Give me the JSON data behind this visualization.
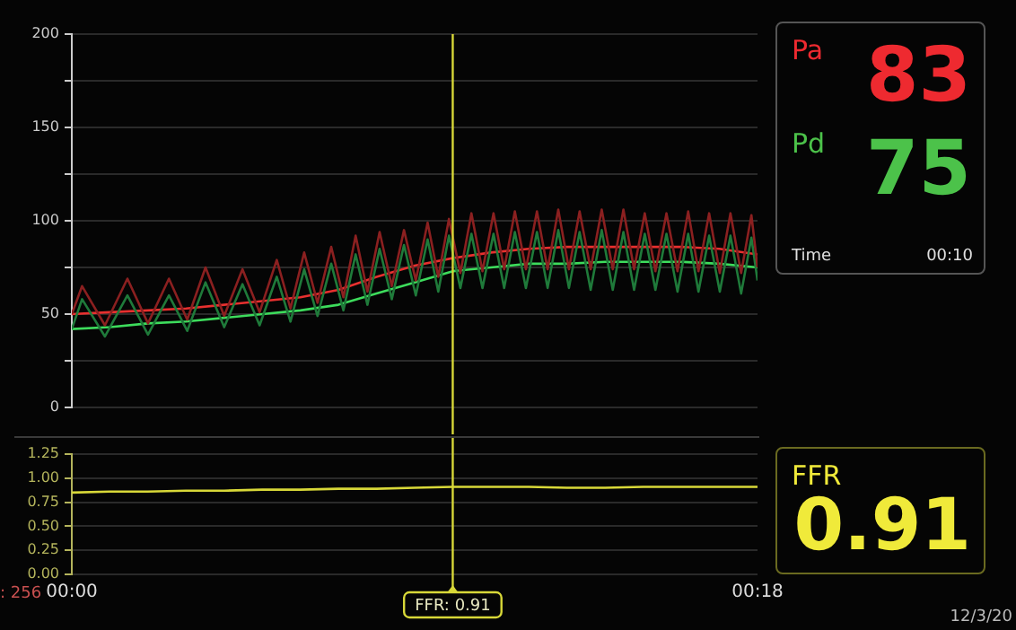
{
  "chart_data": [
    {
      "type": "line",
      "ylim": [
        0,
        200
      ],
      "yticks": [
        0,
        {
          "value": 25,
          "label": null
        },
        50,
        {
          "value": 75,
          "label": null
        },
        100,
        {
          "value": 125,
          "label": null
        },
        150,
        {
          "value": 175,
          "label": null
        },
        200
      ],
      "xlim": [
        0,
        18
      ],
      "tick_labels": "y",
      "grid": "y",
      "series": [
        {
          "color": "#8b2020",
          "x": [
            0,
            0.27,
            0.87,
            1.46,
            2.0,
            2.55,
            3.03,
            3.51,
            4.0,
            4.48,
            4.93,
            5.38,
            5.74,
            6.1,
            6.45,
            6.81,
            7.13,
            7.45,
            7.76,
            8.08,
            8.4,
            8.72,
            9.03,
            9.34,
            9.62,
            9.9,
            10.2,
            10.49,
            10.78,
            11.07,
            11.35,
            11.63,
            11.92,
            12.21,
            12.49,
            12.77,
            13.05,
            13.33,
            13.62,
            13.91,
            14.2,
            14.48,
            14.76,
            15.04,
            15.32,
            15.61,
            15.9,
            16.18,
            16.45,
            16.73,
            17.01,
            17.29,
            17.57,
            17.84,
            18
          ],
          "values": [
            50,
            65,
            44,
            69,
            45,
            69,
            47,
            75,
            49,
            74,
            51,
            79,
            53,
            83,
            56,
            86,
            59,
            92,
            62,
            94,
            65,
            95,
            68,
            99,
            70,
            101,
            72,
            104,
            73,
            104,
            74,
            105,
            74,
            105,
            74,
            106,
            74,
            105,
            74,
            106,
            74,
            106,
            74,
            104,
            73,
            104,
            73,
            105,
            73,
            104,
            72,
            104,
            72,
            103,
            75
          ]
        },
        {
          "color": "#1f7a3a",
          "x": [
            0,
            0.27,
            0.87,
            1.46,
            2.0,
            2.55,
            3.03,
            3.51,
            4.0,
            4.48,
            4.93,
            5.38,
            5.74,
            6.1,
            6.45,
            6.81,
            7.13,
            7.45,
            7.76,
            8.08,
            8.4,
            8.72,
            9.03,
            9.34,
            9.62,
            9.9,
            10.2,
            10.49,
            10.78,
            11.07,
            11.35,
            11.63,
            11.92,
            12.21,
            12.49,
            12.77,
            13.05,
            13.33,
            13.62,
            13.91,
            14.2,
            14.48,
            14.76,
            15.04,
            15.32,
            15.61,
            15.9,
            16.18,
            16.45,
            16.73,
            17.01,
            17.29,
            17.57,
            17.84,
            18
          ],
          "values": [
            42,
            58,
            38,
            60,
            39,
            60,
            41,
            67,
            43,
            66,
            44,
            70,
            46,
            74,
            49,
            77,
            52,
            82,
            55,
            85,
            58,
            87,
            60,
            90,
            62,
            92,
            64,
            93,
            64,
            93,
            64,
            94,
            64,
            94,
            64,
            95,
            64,
            94,
            63,
            95,
            63,
            94,
            63,
            93,
            63,
            93,
            62,
            93,
            62,
            92,
            62,
            92,
            61,
            91,
            68
          ]
        },
        {
          "color": "#e8302f",
          "x": [
            0,
            1,
            2,
            3,
            4,
            5,
            6,
            7,
            8,
            9,
            10,
            11,
            12,
            13,
            14,
            15,
            16,
            17,
            18
          ],
          "values": [
            50,
            51,
            52,
            53,
            55,
            57,
            59,
            63,
            70,
            76,
            80,
            83,
            85,
            86,
            86,
            86,
            86,
            85,
            82
          ]
        },
        {
          "color": "#3ddc5c",
          "x": [
            0,
            1,
            2,
            3,
            4,
            5,
            6,
            7,
            8,
            9,
            10,
            11,
            12,
            13,
            14,
            15,
            16,
            17,
            18
          ],
          "values": [
            42,
            43,
            45,
            46,
            48,
            50,
            52,
            55,
            61,
            67,
            73,
            75,
            77,
            77,
            78,
            78,
            78,
            77,
            75
          ]
        }
      ],
      "ref_lines": [
        {
          "axis": "x",
          "value": 10,
          "color": "#d8d838"
        }
      ]
    },
    {
      "type": "line",
      "ylim": [
        0,
        1.25
      ],
      "yticks": [
        {
          "value": 0,
          "label": "0.00"
        },
        {
          "value": 0.25,
          "label": "0.25"
        },
        {
          "value": 0.5,
          "label": "0.50"
        },
        {
          "value": 0.75,
          "label": "0.75"
        },
        {
          "value": 1,
          "label": "1.00"
        },
        {
          "value": 1.25,
          "label": "1.25"
        }
      ],
      "xlim": [
        0,
        18
      ],
      "xticks": [
        {
          "value": 0,
          "label": "00:00"
        },
        {
          "value": 18,
          "label": "00:18"
        }
      ],
      "grid": "y",
      "x": [
        0,
        1,
        2,
        3,
        4,
        5,
        6,
        7,
        8,
        9,
        10,
        11,
        12,
        13,
        14,
        15,
        16,
        17,
        18
      ],
      "series": [
        {
          "color": "#d8d838",
          "values": [
            0.85,
            0.86,
            0.86,
            0.87,
            0.87,
            0.88,
            0.88,
            0.89,
            0.89,
            0.9,
            0.91,
            0.91,
            0.91,
            0.9,
            0.9,
            0.91,
            0.91,
            0.91,
            0.91
          ]
        }
      ],
      "ref_lines": [
        {
          "axis": "x",
          "value": 10,
          "color": "#d8d838"
        }
      ],
      "annotations": [
        ": 256",
        "12/3/20",
        "FFR: 0.91"
      ]
    },
    {
      "type": "other",
      "categories": [
        "Pa",
        "Pd"
      ],
      "values": [
        83,
        75
      ],
      "colors": [
        "#ee2a30",
        "#4cc24a"
      ],
      "data_labels": true,
      "annotations": [
        "Time",
        "00:10"
      ]
    },
    {
      "type": "other",
      "categories": [
        "FFR"
      ],
      "values": [
        0.91
      ],
      "colors": [
        "#f0ea3a"
      ],
      "data_labels": true
    }
  ]
}
